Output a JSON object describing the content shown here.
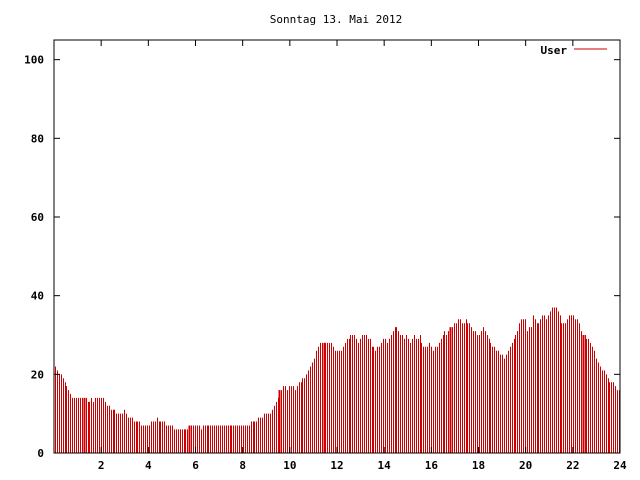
{
  "chart_data": {
    "type": "bar",
    "title": "Sonntag 13. Mai 2012",
    "xlabel": "",
    "ylabel": "",
    "xlim": [
      0,
      24
    ],
    "ylim": [
      0,
      105
    ],
    "x_ticks": [
      2,
      4,
      6,
      8,
      10,
      12,
      14,
      16,
      18,
      20,
      22,
      24
    ],
    "y_ticks": [
      0,
      20,
      40,
      60,
      80,
      100
    ],
    "grid": false,
    "legend_position": "top-right",
    "series": [
      {
        "name": "User",
        "color": "#cc0000",
        "values": [
          22,
          21,
          20,
          20,
          19,
          18,
          17,
          16,
          15,
          14,
          14,
          14,
          14,
          14,
          14,
          14,
          14,
          13,
          13,
          14,
          13,
          14,
          14,
          14,
          14,
          14,
          13,
          12,
          12,
          11,
          11,
          11,
          10,
          10,
          10,
          10,
          11,
          10,
          9,
          9,
          9,
          8,
          8,
          8,
          8,
          7,
          7,
          7,
          7,
          7,
          8,
          8,
          8,
          9,
          8,
          8,
          8,
          8,
          7,
          7,
          7,
          7,
          6,
          6,
          6,
          6,
          6,
          6,
          6,
          6,
          7,
          7,
          7,
          7,
          7,
          7,
          6,
          7,
          7,
          7,
          7,
          7,
          7,
          7,
          7,
          7,
          7,
          7,
          7,
          7,
          7,
          7,
          7,
          7,
          7,
          7,
          7,
          7,
          7,
          7,
          7,
          7,
          8,
          8,
          8,
          8,
          9,
          9,
          9,
          10,
          10,
          10,
          10,
          11,
          12,
          13,
          14,
          16,
          16,
          17,
          17,
          16,
          17,
          17,
          17,
          16,
          17,
          18,
          18,
          19,
          19,
          20,
          21,
          22,
          23,
          24,
          26,
          27,
          28,
          28,
          28,
          28,
          28,
          28,
          28,
          27,
          26,
          26,
          26,
          26,
          27,
          28,
          29,
          29,
          30,
          30,
          30,
          29,
          28,
          29,
          30,
          30,
          30,
          29,
          29,
          27,
          27,
          26,
          27,
          27,
          28,
          29,
          29,
          28,
          29,
          30,
          31,
          32,
          32,
          31,
          30,
          30,
          29,
          30,
          29,
          28,
          29,
          30,
          29,
          29,
          30,
          28,
          27,
          27,
          27,
          28,
          27,
          26,
          27,
          27,
          28,
          29,
          30,
          31,
          30,
          31,
          32,
          32,
          33,
          33,
          34,
          34,
          33,
          33,
          34,
          33,
          33,
          32,
          31,
          31,
          30,
          30,
          31,
          32,
          31,
          30,
          29,
          28,
          27,
          27,
          26,
          26,
          25,
          25,
          24,
          25,
          26,
          27,
          28,
          29,
          30,
          31,
          33,
          34,
          34,
          34,
          31,
          32,
          32,
          35,
          34,
          33,
          33,
          34,
          35,
          35,
          34,
          35,
          36,
          37,
          37,
          37,
          36,
          35,
          33,
          33,
          33,
          34,
          35,
          35,
          35,
          34,
          34,
          33,
          31,
          30,
          30,
          29,
          29,
          28,
          27,
          26,
          24,
          23,
          22,
          21,
          21,
          20,
          19,
          18,
          18,
          18,
          17,
          16,
          16
        ]
      }
    ],
    "emphasized_bar_indices": [
      15,
      70,
      117,
      140,
      206,
      275,
      349
    ],
    "bar_count": 361
  }
}
